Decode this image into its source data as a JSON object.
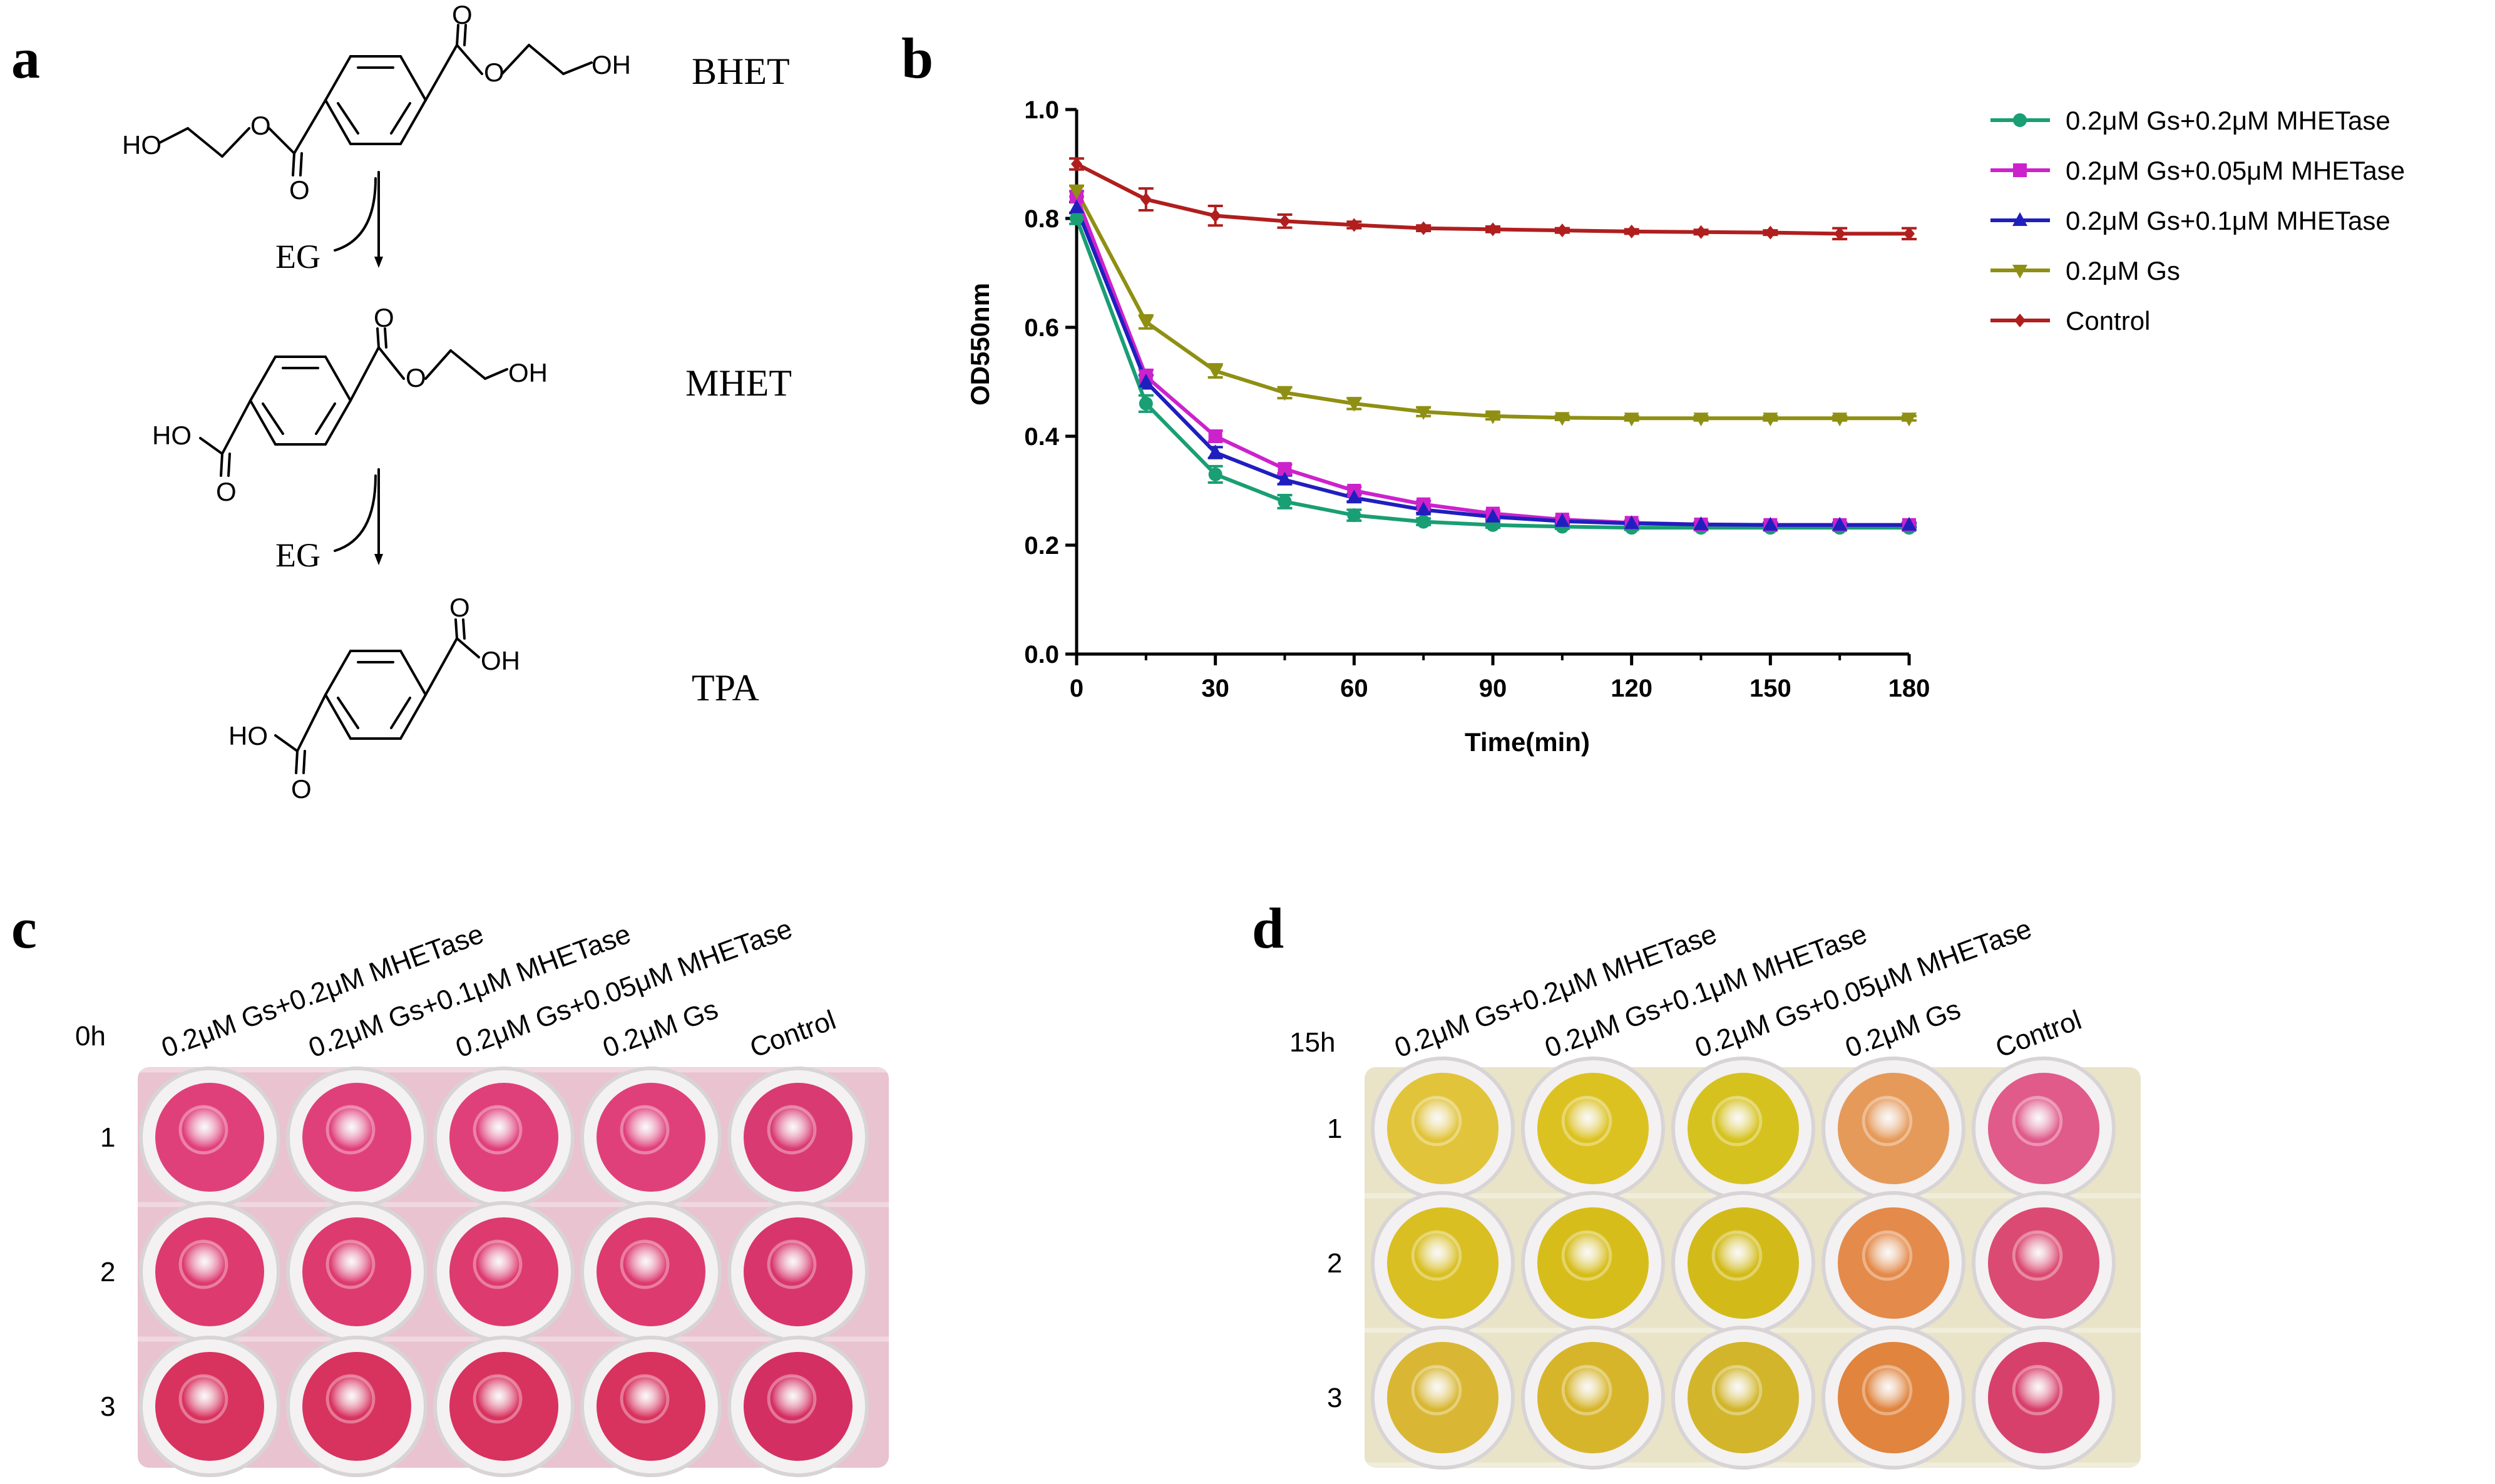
{
  "panels": {
    "a": "a",
    "b": "b",
    "c": "c",
    "d": "d"
  },
  "scheme": {
    "compounds": [
      "BHET",
      "MHET",
      "TPA"
    ],
    "byproduct": "EG",
    "atoms": {
      "O": "O",
      "OH": "OH",
      "HO": "HO"
    }
  },
  "chart_data": {
    "type": "line",
    "title": "",
    "xlabel": "Time(min)",
    "ylabel": "OD550nm",
    "x": [
      0,
      15,
      30,
      45,
      60,
      75,
      90,
      105,
      120,
      135,
      150,
      165,
      180
    ],
    "xlim": [
      0,
      180
    ],
    "ylim": [
      0.0,
      1.0
    ],
    "xticks": [
      0,
      30,
      60,
      90,
      120,
      150,
      180
    ],
    "yticks": [
      0.0,
      0.2,
      0.4,
      0.6,
      0.8,
      1.0
    ],
    "xtick_labels": [
      "0",
      "30",
      "60",
      "90",
      "120",
      "150",
      "180"
    ],
    "ytick_labels": [
      "0.0",
      "0.2",
      "0.4",
      "0.6",
      "0.8",
      "1.0"
    ],
    "legend_position": "right",
    "series": [
      {
        "name": "0.2μM Gs+0.2μM MHETase",
        "color": "#1a9e74",
        "marker": "circle",
        "values": [
          0.8,
          0.46,
          0.33,
          0.28,
          0.255,
          0.243,
          0.237,
          0.234,
          0.232,
          0.232,
          0.232,
          0.232,
          0.232
        ],
        "errors": [
          0.01,
          0.015,
          0.015,
          0.012,
          0.01,
          0.006,
          0.005,
          0.004,
          0.004,
          0.004,
          0.004,
          0.004,
          0.004
        ]
      },
      {
        "name": "0.2μM Gs+0.05μM MHETase",
        "color": "#cc22cc",
        "marker": "square",
        "values": [
          0.84,
          0.51,
          0.4,
          0.34,
          0.3,
          0.275,
          0.258,
          0.247,
          0.241,
          0.238,
          0.237,
          0.237,
          0.237
        ],
        "errors": [
          0.01,
          0.012,
          0.01,
          0.008,
          0.007,
          0.006,
          0.005,
          0.004,
          0.004,
          0.004,
          0.004,
          0.004,
          0.004
        ]
      },
      {
        "name": "0.2μM Gs+0.1μM MHETase",
        "color": "#1f1fbf",
        "marker": "triangle-up",
        "values": [
          0.82,
          0.5,
          0.37,
          0.32,
          0.287,
          0.265,
          0.252,
          0.244,
          0.24,
          0.238,
          0.237,
          0.237,
          0.237
        ],
        "errors": [
          0.01,
          0.012,
          0.01,
          0.008,
          0.007,
          0.006,
          0.005,
          0.004,
          0.004,
          0.004,
          0.004,
          0.004,
          0.004
        ]
      },
      {
        "name": "0.2μM Gs",
        "color": "#8f8f13",
        "marker": "triangle-down",
        "values": [
          0.85,
          0.61,
          0.52,
          0.48,
          0.46,
          0.445,
          0.437,
          0.434,
          0.433,
          0.433,
          0.433,
          0.433,
          0.433
        ],
        "errors": [
          0.01,
          0.012,
          0.012,
          0.01,
          0.01,
          0.008,
          0.006,
          0.004,
          0.004,
          0.004,
          0.004,
          0.004,
          0.004
        ]
      },
      {
        "name": "Control",
        "color": "#b01e1e",
        "marker": "diamond",
        "values": [
          0.9,
          0.835,
          0.805,
          0.795,
          0.788,
          0.782,
          0.78,
          0.778,
          0.776,
          0.775,
          0.774,
          0.772,
          0.772
        ],
        "errors": [
          0.01,
          0.02,
          0.018,
          0.012,
          0.006,
          0.005,
          0.005,
          0.004,
          0.004,
          0.004,
          0.004,
          0.01,
          0.01
        ]
      }
    ]
  },
  "plates": {
    "columns": [
      "0.2μM Gs+0.2μM MHETase",
      "0.2μM Gs+0.1μM MHETase",
      "0.2μM Gs+0.05μM MHETase",
      "0.2μM Gs",
      "Control"
    ],
    "rows": [
      "1",
      "2",
      "3"
    ],
    "c": {
      "time": "0h",
      "colors": [
        [
          "#e0407a",
          "#e0407a",
          "#e0407a",
          "#e0407a",
          "#d93a72"
        ],
        [
          "#dd3a70",
          "#dd3a70",
          "#dd3a70",
          "#dd3a70",
          "#d8356c"
        ],
        [
          "#d8325f",
          "#d8325f",
          "#d8325f",
          "#d8325f",
          "#d42f62"
        ]
      ]
    },
    "d": {
      "time": "15h",
      "colors": [
        [
          "#e1c43a",
          "#dcc221",
          "#d6c21e",
          "#e59a5a",
          "#e05a8a"
        ],
        [
          "#d9bf21",
          "#d7bd1a",
          "#d2bb18",
          "#e48a4a",
          "#db4a72"
        ],
        [
          "#d9b734",
          "#d7b52b",
          "#d2b52a",
          "#e0843e",
          "#d8406c"
        ]
      ]
    }
  }
}
